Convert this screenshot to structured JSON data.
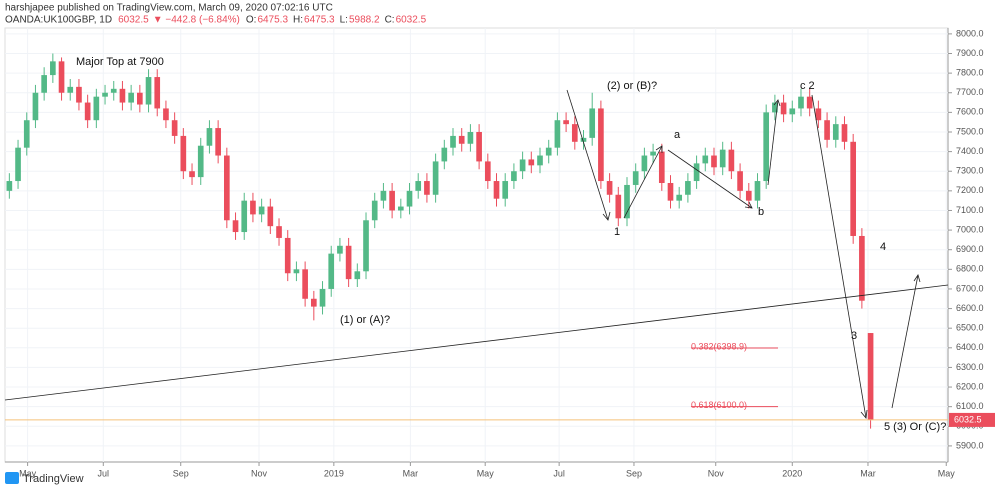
{
  "header": {
    "publisher": "harshjapee published on TradingView.com, March 09, 2020 07:02:16 UTC",
    "symbol": "OANDA:UK100GBP, 1D",
    "change": "▼ −442.8 (−6.84%)",
    "o_label": "O:",
    "h_label": "H:",
    "l_label": "L:",
    "c_label": "C:"
  },
  "footer": {
    "brand": "TradingView"
  },
  "chart_data": {
    "type": "candlestick",
    "up_color": "#53b987",
    "down_color": "#eb4d5c",
    "xlim": [
      0,
      108.4
    ],
    "xticks": [
      {
        "value": 2.6,
        "label": "May"
      },
      {
        "value": 11.3,
        "label": "Jul"
      },
      {
        "value": 20.2,
        "label": "Sep"
      },
      {
        "value": 29.2,
        "label": "Nov"
      },
      {
        "value": 37.8,
        "label": "2019"
      },
      {
        "value": 46.6,
        "label": "Mar"
      },
      {
        "value": 55.2,
        "label": "May"
      },
      {
        "value": 63.7,
        "label": "Jul"
      },
      {
        "value": 72.3,
        "label": "Sep"
      },
      {
        "value": 81.7,
        "label": "Nov"
      },
      {
        "value": 90.5,
        "label": "2020"
      },
      {
        "value": 99.2,
        "label": "Mar"
      },
      {
        "value": 108.2,
        "label": "May"
      }
    ],
    "ylim": [
      5818,
      8030
    ],
    "yticks": [
      {
        "value": 5900,
        "label": "5900.0"
      },
      {
        "value": 6000,
        "label": "6000.0"
      },
      {
        "value": 6100,
        "label": "6100.0"
      },
      {
        "value": 6200,
        "label": "6200.0"
      },
      {
        "value": 6300,
        "label": "6300.0"
      },
      {
        "value": 6400,
        "label": "6400.0"
      },
      {
        "value": 6500,
        "label": "6500.0"
      },
      {
        "value": 6600,
        "label": "6600.0"
      },
      {
        "value": 6700,
        "label": "6700.0"
      },
      {
        "value": 6800,
        "label": "6800.0"
      },
      {
        "value": 6900,
        "label": "6900.0"
      },
      {
        "value": 7000,
        "label": "7000.0"
      },
      {
        "value": 7100,
        "label": "7100.0"
      },
      {
        "value": 7200,
        "label": "7200.0"
      },
      {
        "value": 7300,
        "label": "7300.0"
      },
      {
        "value": 7400,
        "label": "7400.0"
      },
      {
        "value": 7500,
        "label": "7500.0"
      },
      {
        "value": 7600,
        "label": "7600.0"
      },
      {
        "value": 7700,
        "label": "7700.0"
      },
      {
        "value": 7800,
        "label": "7800.0"
      },
      {
        "value": 7900,
        "label": "7900.0"
      },
      {
        "value": 8000,
        "label": "8000.0"
      }
    ],
    "open": [
      7200,
      7250,
      7420,
      7560,
      7700,
      7790,
      7860,
      7700,
      7730,
      7650,
      7560,
      7680,
      7700,
      7720,
      7650,
      7700,
      7640,
      7780,
      7620,
      7560,
      7480,
      7300,
      7270,
      7430,
      7520,
      7380,
      7050,
      6990,
      7150,
      7080,
      7120,
      7020,
      6960,
      6780,
      6800,
      6650,
      6610,
      6700,
      6880,
      6920,
      6750,
      6790,
      7050,
      7150,
      7200,
      7100,
      7120,
      7200,
      7250,
      7180,
      7350,
      7420,
      7480,
      7440,
      7500,
      7350,
      7250,
      7160,
      7250,
      7300,
      7360,
      7330,
      7380,
      7420,
      7560,
      7540,
      7450,
      7470,
      7620,
      7250,
      7180,
      7060,
      7230,
      7300,
      7380,
      7400,
      7240,
      7150,
      7180,
      7250,
      7340,
      7380,
      7320,
      7410,
      7300,
      7200,
      7150,
      7250,
      7600,
      7650,
      7590,
      7620,
      7680,
      7620,
      7560,
      7460,
      7540,
      7450,
      6970,
      6475.3
    ],
    "high": [
      7290,
      7460,
      7600,
      7740,
      7830,
      7900,
      7880,
      7770,
      7770,
      7690,
      7720,
      7740,
      7760,
      7760,
      7740,
      7740,
      7820,
      7820,
      7660,
      7600,
      7520,
      7340,
      7470,
      7560,
      7560,
      7420,
      7090,
      7190,
      7190,
      7160,
      7160,
      7060,
      7000,
      6840,
      6840,
      6690,
      6740,
      6920,
      6960,
      6960,
      6830,
      7090,
      7190,
      7240,
      7240,
      7160,
      7240,
      7290,
      7290,
      7390,
      7460,
      7520,
      7520,
      7540,
      7540,
      7390,
      7290,
      7290,
      7340,
      7400,
      7400,
      7420,
      7460,
      7600,
      7600,
      7580,
      7510,
      7700,
      7660,
      7290,
      7220,
      7270,
      7340,
      7420,
      7440,
      7440,
      7280,
      7220,
      7290,
      7380,
      7420,
      7420,
      7450,
      7450,
      7340,
      7240,
      7290,
      7640,
      7690,
      7690,
      7660,
      7720,
      7720,
      7660,
      7600,
      7580,
      7580,
      7490,
      7010,
      6475.3
    ],
    "low": [
      7160,
      7210,
      7380,
      7520,
      7660,
      7750,
      7660,
      7660,
      7610,
      7520,
      7520,
      7640,
      7660,
      7610,
      7610,
      7600,
      7600,
      7580,
      7520,
      7440,
      7260,
      7230,
      7230,
      7390,
      7340,
      7010,
      6950,
      6950,
      7040,
      7040,
      6980,
      6920,
      6740,
      6740,
      6610,
      6540,
      6570,
      6660,
      6840,
      6710,
      6710,
      6750,
      7010,
      7110,
      7060,
      7060,
      7080,
      7160,
      7140,
      7140,
      7310,
      7380,
      7400,
      7400,
      7310,
      7210,
      7120,
      7120,
      7210,
      7260,
      7290,
      7290,
      7340,
      7380,
      7500,
      7410,
      7410,
      7430,
      7210,
      7140,
      7020,
      7020,
      7190,
      7260,
      7340,
      7200,
      7110,
      7110,
      7140,
      7210,
      7300,
      7280,
      7280,
      7260,
      7160,
      7110,
      7110,
      7210,
      7560,
      7550,
      7550,
      7580,
      7580,
      7520,
      7420,
      7420,
      7410,
      6930,
      6600,
      5988.2
    ],
    "close": [
      7250,
      7420,
      7560,
      7700,
      7790,
      7860,
      7700,
      7730,
      7650,
      7560,
      7680,
      7700,
      7720,
      7650,
      7700,
      7640,
      7780,
      7620,
      7560,
      7480,
      7300,
      7270,
      7430,
      7520,
      7380,
      7050,
      6990,
      7150,
      7080,
      7120,
      7020,
      6960,
      6780,
      6800,
      6650,
      6610,
      6700,
      6880,
      6920,
      6750,
      6790,
      7050,
      7150,
      7200,
      7100,
      7120,
      7200,
      7250,
      7180,
      7350,
      7420,
      7480,
      7440,
      7500,
      7350,
      7250,
      7160,
      7250,
      7300,
      7360,
      7330,
      7380,
      7420,
      7560,
      7540,
      7450,
      7470,
      7620,
      7250,
      7180,
      7060,
      7230,
      7300,
      7380,
      7400,
      7240,
      7150,
      7180,
      7250,
      7340,
      7380,
      7320,
      7410,
      7300,
      7200,
      7150,
      7250,
      7600,
      7650,
      7590,
      7620,
      7680,
      7620,
      7560,
      7460,
      7540,
      7450,
      6970,
      6640,
      6032.5
    ],
    "fib_levels": [
      {
        "value": 6398.9,
        "label": "0.382(6398.9)"
      },
      {
        "value": 6100,
        "label": "0.618(6100.0)"
      }
    ],
    "annotations": [
      "Major Top at 7900",
      "(2) or (B)?",
      "c 2",
      "a",
      "1",
      "b",
      "4",
      "3",
      "(1) or (A)?",
      "5 (3) Or (C)?"
    ]
  }
}
